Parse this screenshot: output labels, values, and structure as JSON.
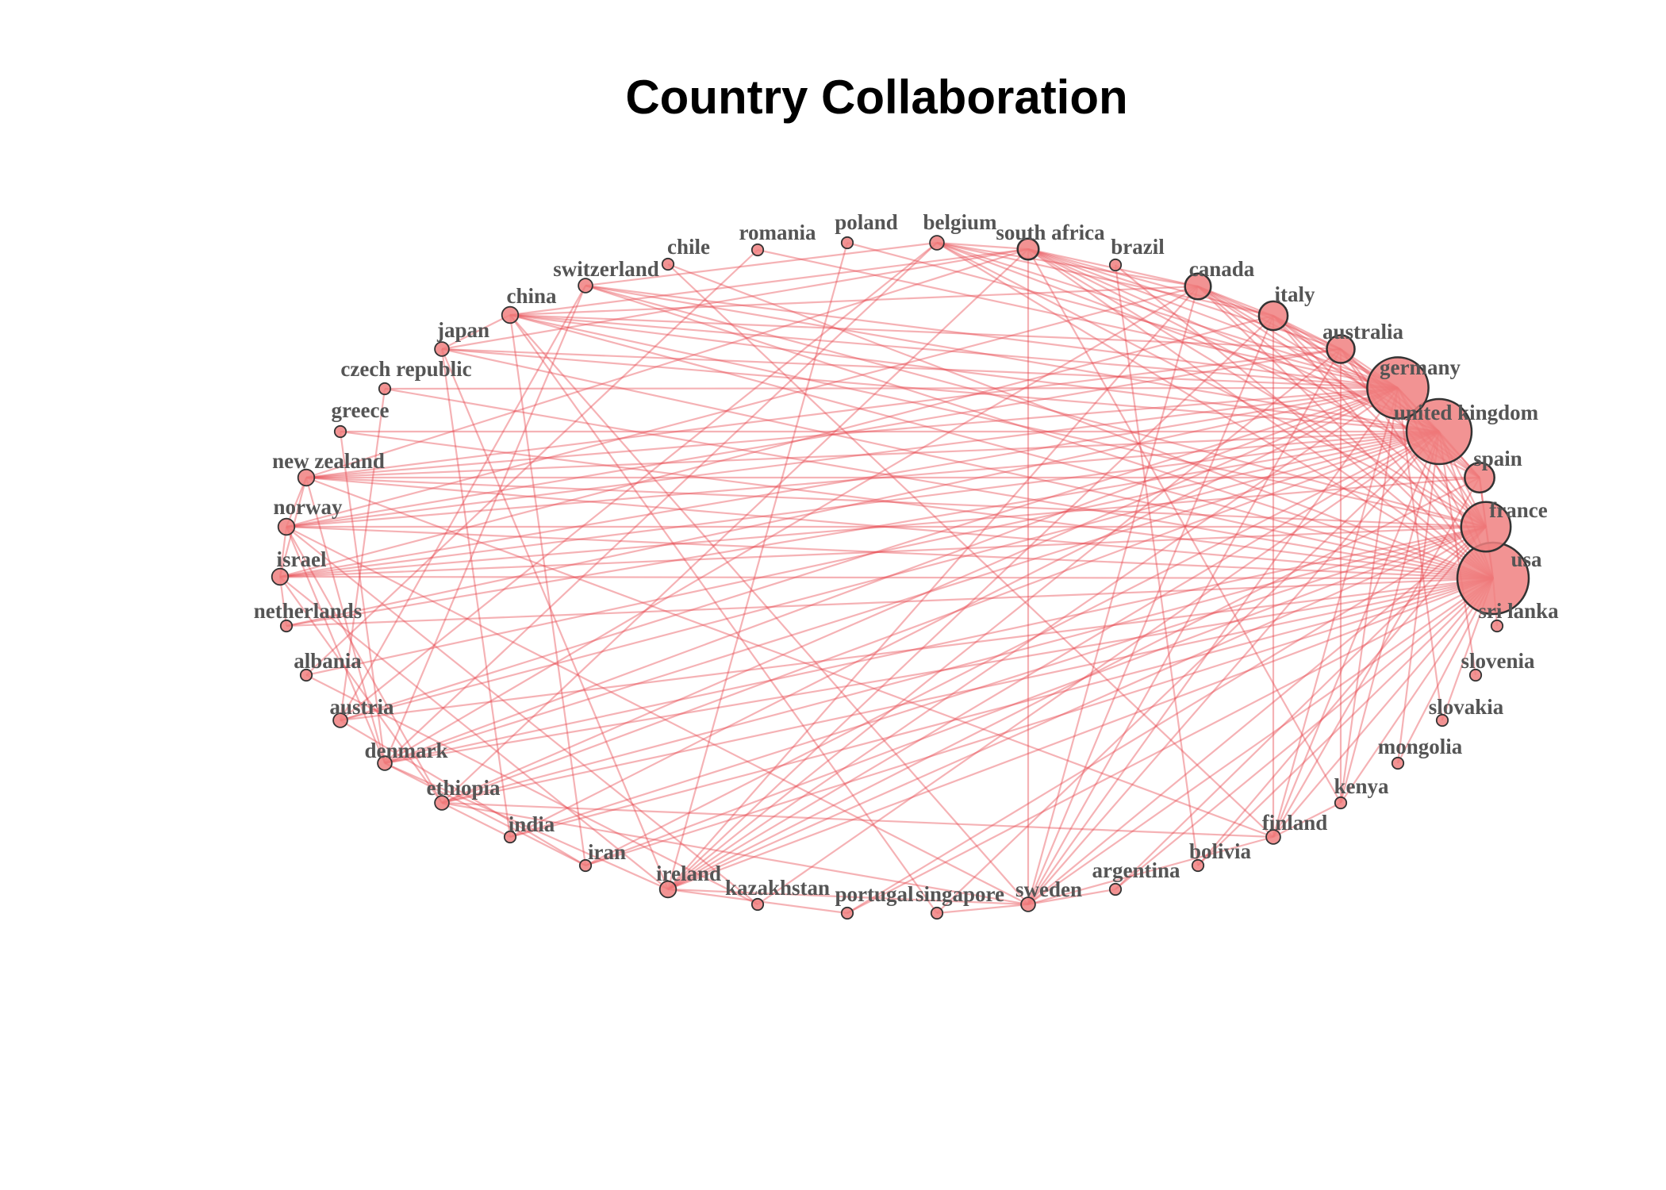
{
  "title": "Country Collaboration",
  "colors": {
    "edge": "#e8474f",
    "node_fill": "#f08080",
    "node_stroke": "#333333",
    "label": "#555555"
  },
  "nodes": [
    {
      "id": "usa",
      "label": "usa",
      "weight": 100
    },
    {
      "id": "united kingdom",
      "label": "united kingdom",
      "weight": 82
    },
    {
      "id": "germany",
      "label": "germany",
      "weight": 72
    },
    {
      "id": "france",
      "label": "france",
      "weight": 45
    },
    {
      "id": "spain",
      "label": "spain",
      "weight": 14
    },
    {
      "id": "australia",
      "label": "australia",
      "weight": 12
    },
    {
      "id": "italy",
      "label": "italy",
      "weight": 13
    },
    {
      "id": "canada",
      "label": "canada",
      "weight": 10
    },
    {
      "id": "brazil",
      "label": "brazil",
      "weight": 1
    },
    {
      "id": "south africa",
      "label": "south africa",
      "weight": 6
    },
    {
      "id": "belgium",
      "label": "belgium",
      "weight": 2
    },
    {
      "id": "poland",
      "label": "poland",
      "weight": 1
    },
    {
      "id": "romania",
      "label": "romania",
      "weight": 1
    },
    {
      "id": "chile",
      "label": "chile",
      "weight": 1
    },
    {
      "id": "switzerland",
      "label": "switzerland",
      "weight": 2
    },
    {
      "id": "china",
      "label": "china",
      "weight": 3
    },
    {
      "id": "japan",
      "label": "japan",
      "weight": 2
    },
    {
      "id": "czech republic",
      "label": "czech republic",
      "weight": 1
    },
    {
      "id": "greece",
      "label": "greece",
      "weight": 1
    },
    {
      "id": "new zealand",
      "label": "new zealand",
      "weight": 3
    },
    {
      "id": "norway",
      "label": "norway",
      "weight": 3
    },
    {
      "id": "israel",
      "label": "israel",
      "weight": 3
    },
    {
      "id": "netherlands",
      "label": "netherlands",
      "weight": 1
    },
    {
      "id": "albania",
      "label": "albania",
      "weight": 1
    },
    {
      "id": "austria",
      "label": "austria",
      "weight": 2
    },
    {
      "id": "denmark",
      "label": "denmark",
      "weight": 2
    },
    {
      "id": "ethiopia",
      "label": "ethiopia",
      "weight": 2
    },
    {
      "id": "india",
      "label": "india",
      "weight": 1
    },
    {
      "id": "iran",
      "label": "iran",
      "weight": 1
    },
    {
      "id": "ireland",
      "label": "ireland",
      "weight": 3
    },
    {
      "id": "kazakhstan",
      "label": "kazakhstan",
      "weight": 1
    },
    {
      "id": "portugal",
      "label": "portugal",
      "weight": 1
    },
    {
      "id": "singapore",
      "label": "singapore",
      "weight": 1
    },
    {
      "id": "sweden",
      "label": "sweden",
      "weight": 2
    },
    {
      "id": "argentina",
      "label": "argentina",
      "weight": 1
    },
    {
      "id": "bolivia",
      "label": "bolivia",
      "weight": 1
    },
    {
      "id": "finland",
      "label": "finland",
      "weight": 2
    },
    {
      "id": "kenya",
      "label": "kenya",
      "weight": 1
    },
    {
      "id": "mongolia",
      "label": "mongolia",
      "weight": 1
    },
    {
      "id": "slovakia",
      "label": "slovakia",
      "weight": 1
    },
    {
      "id": "slovenia",
      "label": "slovenia",
      "weight": 1
    },
    {
      "id": "sri lanka",
      "label": "sri lanka",
      "weight": 1
    }
  ],
  "edges": [
    [
      "usa",
      "united kingdom"
    ],
    [
      "usa",
      "germany"
    ],
    [
      "usa",
      "france"
    ],
    [
      "usa",
      "spain"
    ],
    [
      "usa",
      "australia"
    ],
    [
      "usa",
      "italy"
    ],
    [
      "usa",
      "canada"
    ],
    [
      "usa",
      "south africa"
    ],
    [
      "usa",
      "belgium"
    ],
    [
      "usa",
      "china"
    ],
    [
      "usa",
      "japan"
    ],
    [
      "usa",
      "new zealand"
    ],
    [
      "usa",
      "norway"
    ],
    [
      "usa",
      "israel"
    ],
    [
      "usa",
      "netherlands"
    ],
    [
      "usa",
      "denmark"
    ],
    [
      "usa",
      "ethiopia"
    ],
    [
      "usa",
      "india"
    ],
    [
      "usa",
      "ireland"
    ],
    [
      "usa",
      "sweden"
    ],
    [
      "usa",
      "finland"
    ],
    [
      "usa",
      "kenya"
    ],
    [
      "usa",
      "brazil"
    ],
    [
      "usa",
      "switzerland"
    ],
    [
      "usa",
      "austria"
    ],
    [
      "usa",
      "greece"
    ],
    [
      "usa",
      "czech republic"
    ],
    [
      "usa",
      "iran"
    ],
    [
      "usa",
      "portugal"
    ],
    [
      "usa",
      "argentina"
    ],
    [
      "usa",
      "mongolia"
    ],
    [
      "usa",
      "sri lanka"
    ],
    [
      "usa",
      "slovakia"
    ],
    [
      "usa",
      "bolivia"
    ],
    [
      "usa",
      "chile"
    ],
    [
      "united kingdom",
      "germany"
    ],
    [
      "united kingdom",
      "france"
    ],
    [
      "united kingdom",
      "spain"
    ],
    [
      "united kingdom",
      "australia"
    ],
    [
      "united kingdom",
      "italy"
    ],
    [
      "united kingdom",
      "canada"
    ],
    [
      "united kingdom",
      "south africa"
    ],
    [
      "united kingdom",
      "belgium"
    ],
    [
      "united kingdom",
      "china"
    ],
    [
      "united kingdom",
      "japan"
    ],
    [
      "united kingdom",
      "new zealand"
    ],
    [
      "united kingdom",
      "norway"
    ],
    [
      "united kingdom",
      "israel"
    ],
    [
      "united kingdom",
      "netherlands"
    ],
    [
      "united kingdom",
      "denmark"
    ],
    [
      "united kingdom",
      "ethiopia"
    ],
    [
      "united kingdom",
      "ireland"
    ],
    [
      "united kingdom",
      "sweden"
    ],
    [
      "united kingdom",
      "finland"
    ],
    [
      "united kingdom",
      "kenya"
    ],
    [
      "united kingdom",
      "switzerland"
    ],
    [
      "united kingdom",
      "greece"
    ],
    [
      "united kingdom",
      "austria"
    ],
    [
      "united kingdom",
      "iran"
    ],
    [
      "united kingdom",
      "singapore"
    ],
    [
      "united kingdom",
      "kazakhstan"
    ],
    [
      "united kingdom",
      "slovenia"
    ],
    [
      "united kingdom",
      "mongolia"
    ],
    [
      "united kingdom",
      "albania"
    ],
    [
      "germany",
      "france"
    ],
    [
      "germany",
      "spain"
    ],
    [
      "germany",
      "australia"
    ],
    [
      "germany",
      "italy"
    ],
    [
      "germany",
      "canada"
    ],
    [
      "germany",
      "south africa"
    ],
    [
      "germany",
      "belgium"
    ],
    [
      "germany",
      "china"
    ],
    [
      "germany",
      "japan"
    ],
    [
      "germany",
      "new zealand"
    ],
    [
      "germany",
      "norway"
    ],
    [
      "germany",
      "israel"
    ],
    [
      "germany",
      "netherlands"
    ],
    [
      "germany",
      "denmark"
    ],
    [
      "germany",
      "ethiopia"
    ],
    [
      "germany",
      "ireland"
    ],
    [
      "germany",
      "sweden"
    ],
    [
      "germany",
      "finland"
    ],
    [
      "germany",
      "switzerland"
    ],
    [
      "germany",
      "austria"
    ],
    [
      "germany",
      "czech republic"
    ],
    [
      "germany",
      "romania"
    ],
    [
      "germany",
      "poland"
    ],
    [
      "germany",
      "india"
    ],
    [
      "germany",
      "kenya"
    ],
    [
      "germany",
      "slovakia"
    ],
    [
      "france",
      "spain"
    ],
    [
      "france",
      "australia"
    ],
    [
      "france",
      "italy"
    ],
    [
      "france",
      "canada"
    ],
    [
      "france",
      "south africa"
    ],
    [
      "france",
      "belgium"
    ],
    [
      "france",
      "china"
    ],
    [
      "france",
      "new zealand"
    ],
    [
      "france",
      "norway"
    ],
    [
      "france",
      "israel"
    ],
    [
      "france",
      "ireland"
    ],
    [
      "france",
      "sweden"
    ],
    [
      "france",
      "switzerland"
    ],
    [
      "france",
      "denmark"
    ],
    [
      "france",
      "ethiopia"
    ],
    [
      "france",
      "iran"
    ],
    [
      "france",
      "argentina"
    ],
    [
      "france",
      "bolivia"
    ],
    [
      "france",
      "portugal"
    ],
    [
      "france",
      "india"
    ],
    [
      "spain",
      "italy"
    ],
    [
      "spain",
      "canada"
    ],
    [
      "spain",
      "south africa"
    ],
    [
      "spain",
      "australia"
    ],
    [
      "spain",
      "ireland"
    ],
    [
      "spain",
      "finland"
    ],
    [
      "spain",
      "new zealand"
    ],
    [
      "spain",
      "israel"
    ],
    [
      "australia",
      "italy"
    ],
    [
      "australia",
      "canada"
    ],
    [
      "australia",
      "south africa"
    ],
    [
      "australia",
      "china"
    ],
    [
      "australia",
      "new zealand"
    ],
    [
      "australia",
      "ireland"
    ],
    [
      "australia",
      "sweden"
    ],
    [
      "australia",
      "kenya"
    ],
    [
      "australia",
      "norway"
    ],
    [
      "italy",
      "canada"
    ],
    [
      "italy",
      "south africa"
    ],
    [
      "italy",
      "belgium"
    ],
    [
      "italy",
      "israel"
    ],
    [
      "italy",
      "sweden"
    ],
    [
      "italy",
      "finland"
    ],
    [
      "italy",
      "ireland"
    ],
    [
      "canada",
      "south africa"
    ],
    [
      "canada",
      "belgium"
    ],
    [
      "canada",
      "china"
    ],
    [
      "canada",
      "norway"
    ],
    [
      "canada",
      "ireland"
    ],
    [
      "canada",
      "sweden"
    ],
    [
      "canada",
      "denmark"
    ],
    [
      "south africa",
      "belgium"
    ],
    [
      "south africa",
      "china"
    ],
    [
      "south africa",
      "ethiopia"
    ],
    [
      "south africa",
      "kenya"
    ],
    [
      "south africa",
      "new zealand"
    ],
    [
      "south africa",
      "japan"
    ],
    [
      "south africa",
      "sweden"
    ],
    [
      "belgium",
      "switzerland"
    ],
    [
      "belgium",
      "denmark"
    ],
    [
      "belgium",
      "austria"
    ],
    [
      "china",
      "japan"
    ],
    [
      "china",
      "sweden"
    ],
    [
      "china",
      "singapore"
    ],
    [
      "china",
      "iran"
    ],
    [
      "japan",
      "india"
    ],
    [
      "japan",
      "ireland"
    ],
    [
      "switzerland",
      "denmark"
    ],
    [
      "switzerland",
      "austria"
    ],
    [
      "new zealand",
      "norway"
    ],
    [
      "new zealand",
      "israel"
    ],
    [
      "new zealand",
      "denmark"
    ],
    [
      "new zealand",
      "finland"
    ],
    [
      "norway",
      "israel"
    ],
    [
      "norway",
      "denmark"
    ],
    [
      "norway",
      "ethiopia"
    ],
    [
      "norway",
      "sweden"
    ],
    [
      "norway",
      "kazakhstan"
    ],
    [
      "israel",
      "netherlands"
    ],
    [
      "israel",
      "ethiopia"
    ],
    [
      "israel",
      "ireland"
    ],
    [
      "ethiopia",
      "india"
    ],
    [
      "ethiopia",
      "finland"
    ],
    [
      "ethiopia",
      "sweden"
    ],
    [
      "ireland",
      "sweden"
    ],
    [
      "ireland",
      "portugal"
    ],
    [
      "ireland",
      "denmark"
    ],
    [
      "sweden",
      "argentina"
    ],
    [
      "sweden",
      "finland"
    ],
    [
      "sweden",
      "singapore"
    ],
    [
      "finland",
      "kenya"
    ],
    [
      "greece",
      "denmark"
    ],
    [
      "czech republic",
      "austria"
    ],
    [
      "poland",
      "ireland"
    ],
    [
      "romania",
      "albania"
    ],
    [
      "chile",
      "finland"
    ],
    [
      "brazil",
      "bolivia"
    ],
    [
      "denmark",
      "iran"
    ],
    [
      "austria",
      "iran"
    ],
    [
      "albania",
      "kazakhstan"
    ]
  ]
}
